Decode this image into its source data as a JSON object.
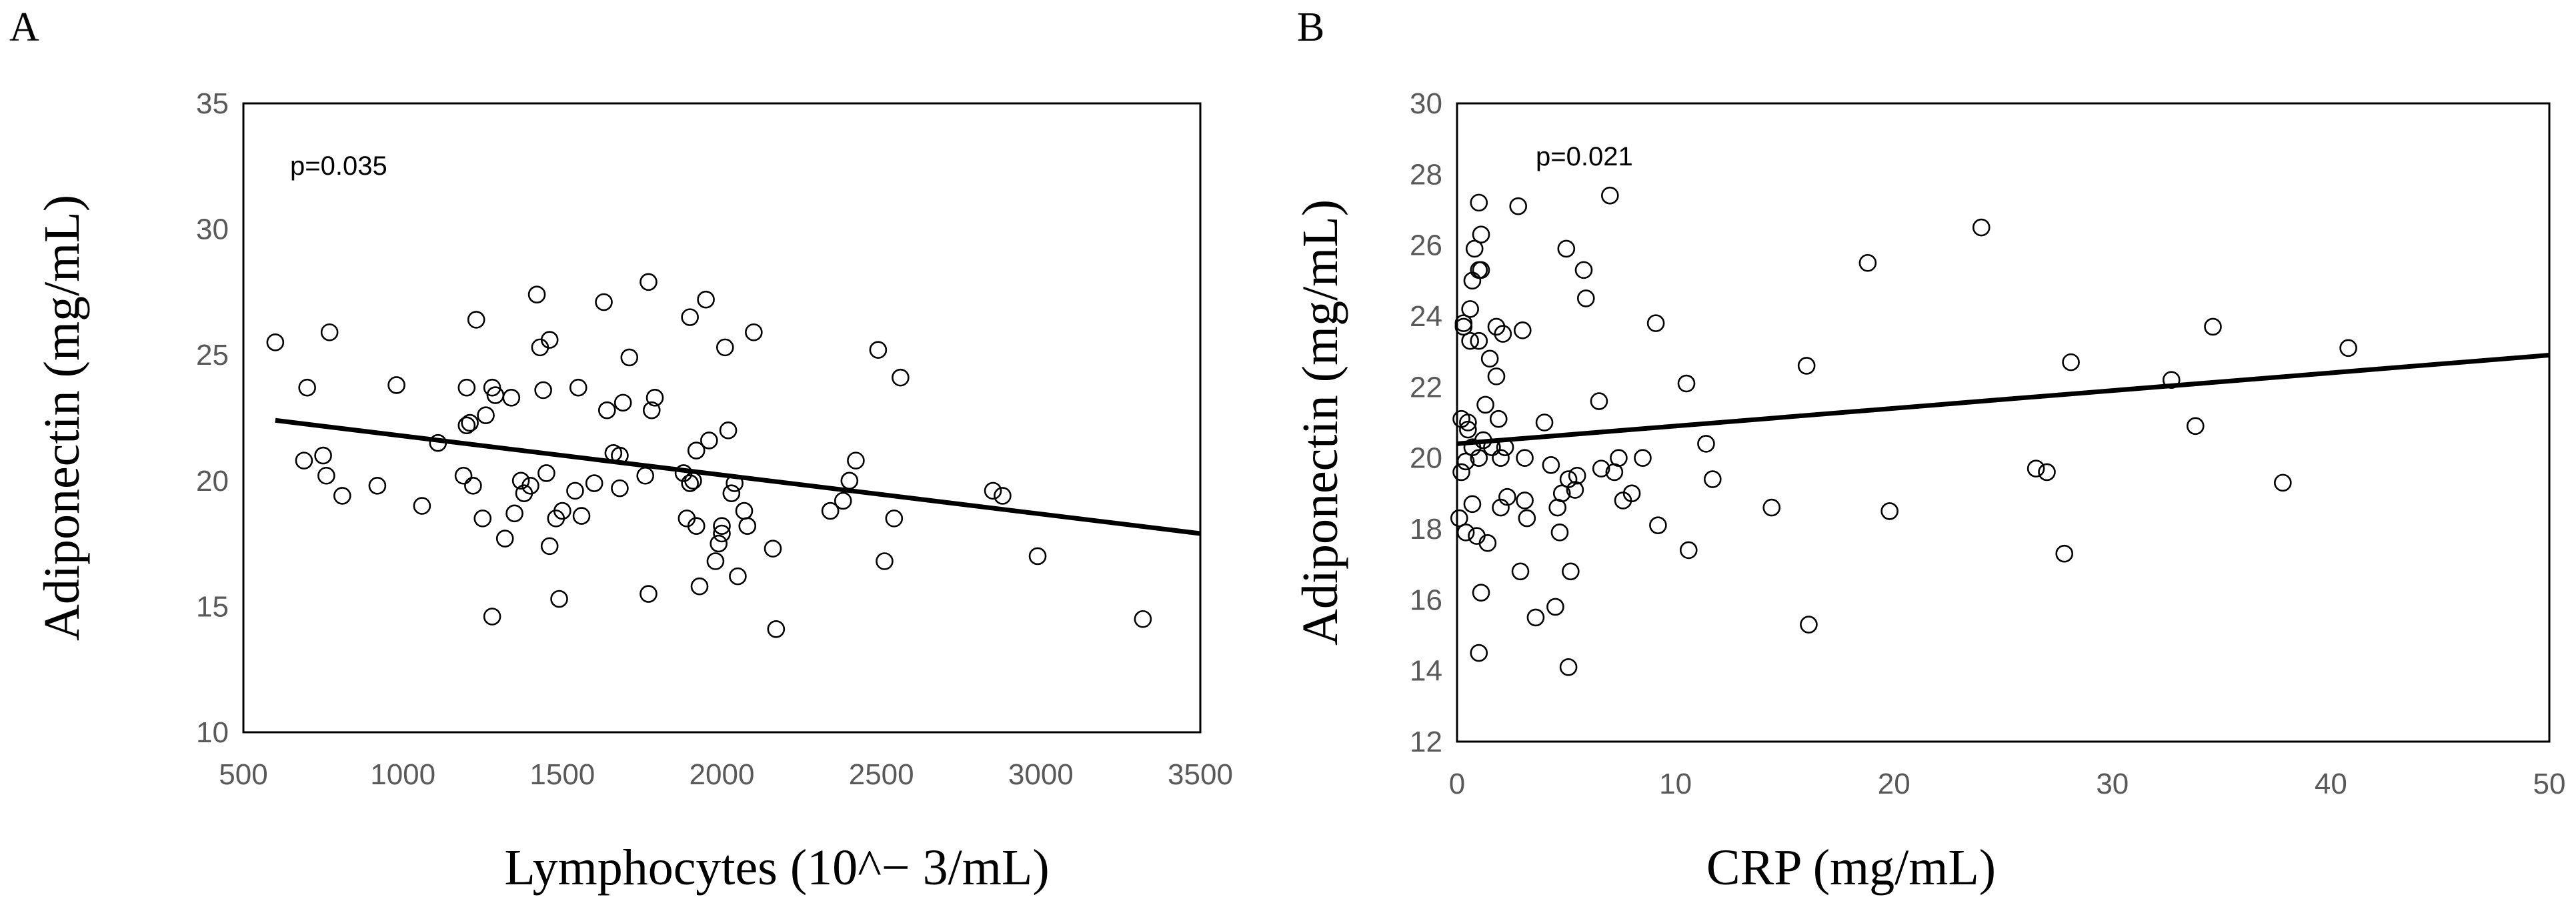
{
  "chart_data": [
    {
      "panel": "A",
      "type": "scatter",
      "title": "",
      "xlabel": "Lymphocytes (10^− 3/mL)",
      "ylabel": "Adiponectin (mg/mL)",
      "annotation": "p=0.035",
      "xlim": [
        500,
        3500
      ],
      "ylim": [
        10,
        35
      ],
      "xticks": [
        500,
        1000,
        1500,
        2000,
        2500,
        3000,
        3500
      ],
      "yticks": [
        10,
        15,
        20,
        25,
        30,
        35
      ],
      "grid": false,
      "trendline": {
        "x": [
          600,
          3500
        ],
        "y": [
          22.4,
          17.9
        ]
      },
      "points": [
        [
          600,
          25.5
        ],
        [
          700,
          23.7
        ],
        [
          690,
          20.8
        ],
        [
          750,
          21.0
        ],
        [
          760,
          20.2
        ],
        [
          770,
          25.9
        ],
        [
          810,
          19.4
        ],
        [
          920,
          19.8
        ],
        [
          980,
          23.8
        ],
        [
          1060,
          19.0
        ],
        [
          1110,
          21.5
        ],
        [
          1190,
          20.2
        ],
        [
          1200,
          22.2
        ],
        [
          1200,
          23.7
        ],
        [
          1210,
          22.3
        ],
        [
          1220,
          19.8
        ],
        [
          1230,
          26.4
        ],
        [
          1250,
          18.5
        ],
        [
          1260,
          22.6
        ],
        [
          1280,
          23.7
        ],
        [
          1290,
          23.4
        ],
        [
          1280,
          14.6
        ],
        [
          1320,
          17.7
        ],
        [
          1340,
          23.3
        ],
        [
          1350,
          18.7
        ],
        [
          1370,
          20.0
        ],
        [
          1380,
          19.5
        ],
        [
          1400,
          19.8
        ],
        [
          1420,
          27.4
        ],
        [
          1430,
          25.3
        ],
        [
          1440,
          23.6
        ],
        [
          1450,
          20.3
        ],
        [
          1460,
          25.6
        ],
        [
          1460,
          17.4
        ],
        [
          1480,
          18.5
        ],
        [
          1490,
          15.3
        ],
        [
          1500,
          18.8
        ],
        [
          1540,
          19.6
        ],
        [
          1550,
          23.7
        ],
        [
          1560,
          18.6
        ],
        [
          1600,
          19.9
        ],
        [
          1630,
          27.1
        ],
        [
          1640,
          22.8
        ],
        [
          1660,
          21.1
        ],
        [
          1680,
          21.0
        ],
        [
          1680,
          19.7
        ],
        [
          1690,
          23.1
        ],
        [
          1710,
          24.9
        ],
        [
          1760,
          20.2
        ],
        [
          1770,
          27.9
        ],
        [
          1780,
          22.8
        ],
        [
          1790,
          23.3
        ],
        [
          1770,
          15.5
        ],
        [
          1880,
          20.3
        ],
        [
          1890,
          18.5
        ],
        [
          1900,
          26.5
        ],
        [
          1900,
          19.9
        ],
        [
          1910,
          20.0
        ],
        [
          1920,
          21.2
        ],
        [
          1930,
          15.8
        ],
        [
          1920,
          18.2
        ],
        [
          1950,
          27.2
        ],
        [
          1960,
          21.6
        ],
        [
          1980,
          16.8
        ],
        [
          1990,
          17.5
        ],
        [
          2000,
          17.9
        ],
        [
          2000,
          18.2
        ],
        [
          2010,
          25.3
        ],
        [
          2020,
          22.0
        ],
        [
          2030,
          19.5
        ],
        [
          2040,
          19.9
        ],
        [
          2050,
          16.2
        ],
        [
          2070,
          18.8
        ],
        [
          2080,
          18.2
        ],
        [
          2100,
          25.9
        ],
        [
          2160,
          17.3
        ],
        [
          2170,
          14.1
        ],
        [
          2340,
          18.8
        ],
        [
          2380,
          19.2
        ],
        [
          2400,
          20.0
        ],
        [
          2420,
          20.8
        ],
        [
          2490,
          25.2
        ],
        [
          2510,
          16.8
        ],
        [
          2540,
          18.5
        ],
        [
          2560,
          24.1
        ],
        [
          2850,
          19.6
        ],
        [
          2880,
          19.4
        ],
        [
          2990,
          17.0
        ],
        [
          3320,
          14.5
        ]
      ]
    },
    {
      "panel": "B",
      "type": "scatter",
      "title": "",
      "xlabel": "CRP (mg/mL)",
      "ylabel": "Adiponectin (mg/mL)",
      "annotation": "p=0.021",
      "xlim": [
        0,
        50
      ],
      "ylim": [
        12,
        30
      ],
      "xticks": [
        0,
        10,
        20,
        30,
        40,
        50
      ],
      "yticks": [
        12,
        14,
        16,
        18,
        20,
        22,
        24,
        26,
        28,
        30
      ],
      "grid": false,
      "trendline": {
        "x": [
          0,
          50
        ],
        "y": [
          20.4,
          22.9
        ]
      },
      "points": [
        [
          0.1,
          18.3
        ],
        [
          0.2,
          19.6
        ],
        [
          0.2,
          21.1
        ],
        [
          0.3,
          23.8
        ],
        [
          0.3,
          23.7
        ],
        [
          0.4,
          17.9
        ],
        [
          0.4,
          19.9
        ],
        [
          0.5,
          21.0
        ],
        [
          0.5,
          20.8
        ],
        [
          0.6,
          24.2
        ],
        [
          0.6,
          23.3
        ],
        [
          0.7,
          25.0
        ],
        [
          0.7,
          20.3
        ],
        [
          0.7,
          18.7
        ],
        [
          0.8,
          25.9
        ],
        [
          0.9,
          17.8
        ],
        [
          1.0,
          27.2
        ],
        [
          1.0,
          25.3
        ],
        [
          1.0,
          14.5
        ],
        [
          1.0,
          23.3
        ],
        [
          1.0,
          20.0
        ],
        [
          1.1,
          26.3
        ],
        [
          1.1,
          25.3
        ],
        [
          1.1,
          16.2
        ],
        [
          1.2,
          20.5
        ],
        [
          1.3,
          21.5
        ],
        [
          1.4,
          17.6
        ],
        [
          1.5,
          22.8
        ],
        [
          1.6,
          20.3
        ],
        [
          1.8,
          23.7
        ],
        [
          1.8,
          22.3
        ],
        [
          1.9,
          21.1
        ],
        [
          2.0,
          18.6
        ],
        [
          2.0,
          20.0
        ],
        [
          2.1,
          23.5
        ],
        [
          2.2,
          20.3
        ],
        [
          2.3,
          18.9
        ],
        [
          2.8,
          27.1
        ],
        [
          2.9,
          16.8
        ],
        [
          3.0,
          23.6
        ],
        [
          3.1,
          20.0
        ],
        [
          3.1,
          18.8
        ],
        [
          3.2,
          18.3
        ],
        [
          3.6,
          15.5
        ],
        [
          4.0,
          21.0
        ],
        [
          4.3,
          19.8
        ],
        [
          4.5,
          15.8
        ],
        [
          4.6,
          18.6
        ],
        [
          4.7,
          17.9
        ],
        [
          4.8,
          19.0
        ],
        [
          5.0,
          25.9
        ],
        [
          5.1,
          19.4
        ],
        [
          5.1,
          14.1
        ],
        [
          5.2,
          16.8
        ],
        [
          5.4,
          19.1
        ],
        [
          5.5,
          19.5
        ],
        [
          5.8,
          25.3
        ],
        [
          5.9,
          24.5
        ],
        [
          6.5,
          21.6
        ],
        [
          6.6,
          19.7
        ],
        [
          7.0,
          27.4
        ],
        [
          7.2,
          19.6
        ],
        [
          7.4,
          20.0
        ],
        [
          7.6,
          18.8
        ],
        [
          8.0,
          19.0
        ],
        [
          8.5,
          20.0
        ],
        [
          9.1,
          23.8
        ],
        [
          9.2,
          18.1
        ],
        [
          10.5,
          22.1
        ],
        [
          10.6,
          17.4
        ],
        [
          11.4,
          20.4
        ],
        [
          11.7,
          19.4
        ],
        [
          14.4,
          18.6
        ],
        [
          16.0,
          22.6
        ],
        [
          16.1,
          15.3
        ],
        [
          18.8,
          25.5
        ],
        [
          19.8,
          18.5
        ],
        [
          24.0,
          26.5
        ],
        [
          26.5,
          19.7
        ],
        [
          27.0,
          19.6
        ],
        [
          27.8,
          17.3
        ],
        [
          28.1,
          22.7
        ],
        [
          32.7,
          22.2
        ],
        [
          33.8,
          20.9
        ],
        [
          34.6,
          23.7
        ],
        [
          37.8,
          19.3
        ],
        [
          40.8,
          23.1
        ]
      ]
    }
  ],
  "panels": {
    "a": {
      "letter": "A"
    },
    "b": {
      "letter": "B"
    }
  }
}
